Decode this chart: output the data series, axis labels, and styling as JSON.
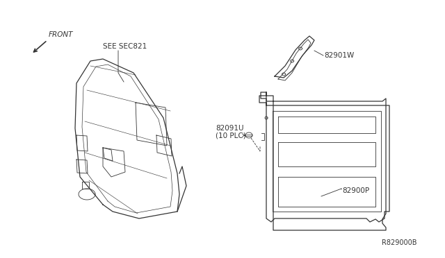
{
  "background_color": "#ffffff",
  "diagram_id": "R829000B",
  "labels": {
    "front": "FRONT",
    "see_sec": "SEE SEC821",
    "part1": "82901W",
    "part2": "82091U",
    "part2b": "(10 PLC)",
    "part3": "82900P"
  },
  "font_size_small": 7.5,
  "font_size_id": 7,
  "line_color": "#333333",
  "lw_main": 0.9,
  "lw_thin": 0.6
}
